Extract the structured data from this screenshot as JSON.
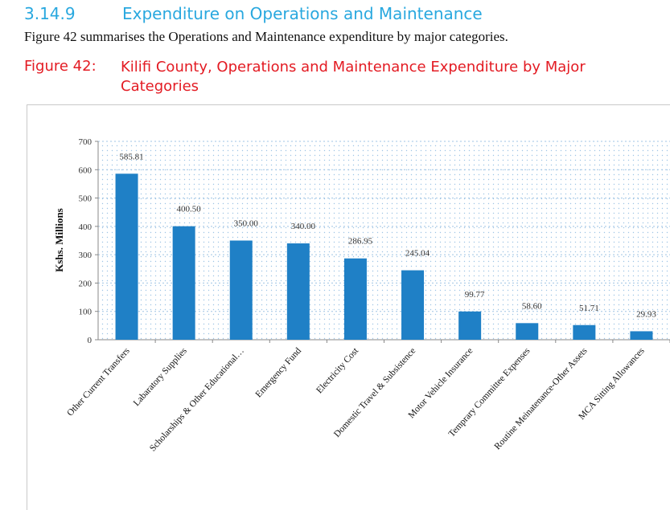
{
  "section": {
    "number": "3.14.9",
    "title": "Expenditure on Operations and Maintenance",
    "intro": "Figure 42 summarises the Operations and Maintenance expenditure by major categories."
  },
  "figure": {
    "number": "Figure 42:",
    "title": "Kilifi County, Operations and Maintenance Expenditure by Major Categories"
  },
  "colors": {
    "bar": "#1f80c6",
    "heading": "#29a8df",
    "figure": "#e31b23"
  },
  "chart_data": {
    "type": "bar",
    "title": "",
    "xlabel": "",
    "ylabel": "Kshs. Millions",
    "ylim": [
      0,
      700
    ],
    "yticks": [
      "0",
      "100",
      "200",
      "300",
      "400",
      "500",
      "600",
      "700"
    ],
    "grid": true,
    "categories": [
      "Other Current Transfers",
      "Labaratory Supplies",
      "Scholarships & Other Educational…",
      "Emergency Fund",
      "Electricity Cost",
      "Domestic Travel & Subsistence",
      "Motor Vehicle Insurance",
      "Temprary Committee Expenses",
      "Routine Meinatenance-Other Assets",
      "MCA Sitting Allowances"
    ],
    "values": [
      585.81,
      400.5,
      350.0,
      340.0,
      286.95,
      245.04,
      99.77,
      58.6,
      51.71,
      29.93
    ],
    "value_labels": [
      "585.81",
      "400.50",
      "350.00",
      "340.00",
      "286.95",
      "245.04",
      "99.77",
      "58.60",
      "51.71",
      "29.93"
    ]
  }
}
